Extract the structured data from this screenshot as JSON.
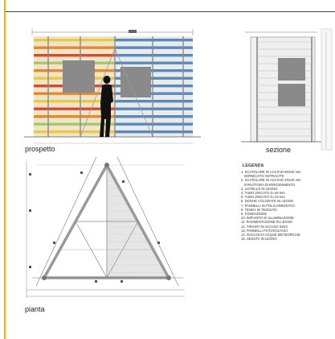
{
  "views": {
    "elevation_label": "prospetto",
    "section_label": "sezione",
    "plan_label": "pianta"
  },
  "legend": {
    "title": "LEGENDA",
    "items": [
      "1. SCATOLARE IN ACCIAIO 80X40 mm\n   VERNICIATO ANTRACITE",
      "2. SCATOLARE IN ACCIAIO 40X40 mm\n   STRUTTURA DI IRRIGIDIMENTO",
      "3. LISTELLO IN LEGNO",
      "4. TUBO ZINCATO D=48 mm",
      "5. TUBO ZINCATO D=33 mm",
      "6. DOGHE COLORATE IN LEGNO",
      "7. PANNELLI IN POLICARBONATO",
      "8. TENDA IN TESSUTO",
      "9. FONDAZIONE",
      "10. IMPIANTO DI ILLUMINAZIONE",
      "11. PAVIMENTAZIONE IN LEGNO",
      "12. TIRANTI IN ACCIAIO INOX",
      "13. PANNELLI FOTOVOLTAICI",
      "14. RACCOLTA ACQUE METEORICHE",
      "15. SEDUTA IN LEGNO"
    ]
  },
  "colors": {
    "frame_accent": "#f2b200",
    "slat_yellow": "#e9c84a",
    "slat_orange": "#e8872f",
    "slat_red": "#d84a35",
    "slat_blue": "#5a88c4",
    "slat_green": "#a9c76a",
    "panel_gray": "#8a8a8a"
  }
}
